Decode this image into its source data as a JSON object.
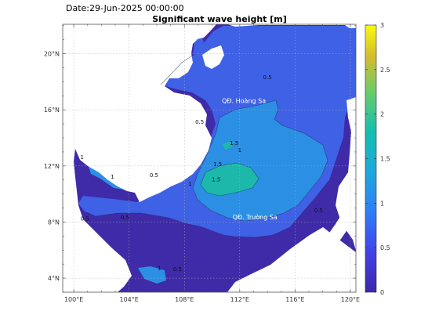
{
  "header": {
    "date": "Date:29-Jun-2025 00:00:00",
    "title": "Significant wave height [m]"
  },
  "map": {
    "lon_ticks": [
      "100°E",
      "104°E",
      "108°E",
      "112°E",
      "116°E",
      "120°E"
    ],
    "lat_ticks": [
      "20°N",
      "16°N",
      "12°N",
      "8°N",
      "4°N"
    ],
    "lon_range": [
      99.2,
      120.4
    ],
    "lat_range": [
      3.0,
      22.1
    ],
    "labels": [
      {
        "text": "QĐ. Hoàng Sa",
        "lon": 112.3,
        "lat": 16.5
      },
      {
        "text": "QĐ. Trường Sa",
        "lon": 113.1,
        "lat": 8.2
      }
    ],
    "contour_labels": [
      {
        "text": "1",
        "lon": 112.0,
        "lat": 13.0
      },
      {
        "text": "1.5",
        "lon": 110.4,
        "lat": 12.0
      },
      {
        "text": "1.5",
        "lon": 111.6,
        "lat": 13.5
      },
      {
        "text": "1.5",
        "lon": 110.3,
        "lat": 10.9
      },
      {
        "text": "1",
        "lon": 108.4,
        "lat": 10.6
      },
      {
        "text": "0.5",
        "lon": 117.7,
        "lat": 8.7
      },
      {
        "text": "0.5",
        "lon": 114.0,
        "lat": 18.2
      },
      {
        "text": "0.5",
        "lon": 109.1,
        "lat": 15.0
      },
      {
        "text": "0.5",
        "lon": 105.8,
        "lat": 11.2
      },
      {
        "text": "0.5",
        "lon": 100.8,
        "lat": 8.1
      },
      {
        "text": "0.5",
        "lon": 103.7,
        "lat": 8.2
      },
      {
        "text": "1",
        "lon": 106.2,
        "lat": 4.6
      },
      {
        "text": "0.5",
        "lon": 107.5,
        "lat": 4.5
      },
      {
        "text": "1",
        "lon": 102.8,
        "lat": 11.1
      },
      {
        "text": "1",
        "lon": 100.6,
        "lat": 12.5
      }
    ]
  },
  "colorbar": {
    "ticks": [
      "3",
      "2.5",
      "2",
      "1.5",
      "1",
      "0.5",
      "0"
    ],
    "min": 0,
    "max": 3
  },
  "colors": {
    "level_0_0_5": "#3f2aa8",
    "level_0_5_1": "#3f61e6",
    "level_1_1_5": "#2b8fe3",
    "level_1_5_2": "#1cb8a9",
    "land": "#ffffff"
  }
}
